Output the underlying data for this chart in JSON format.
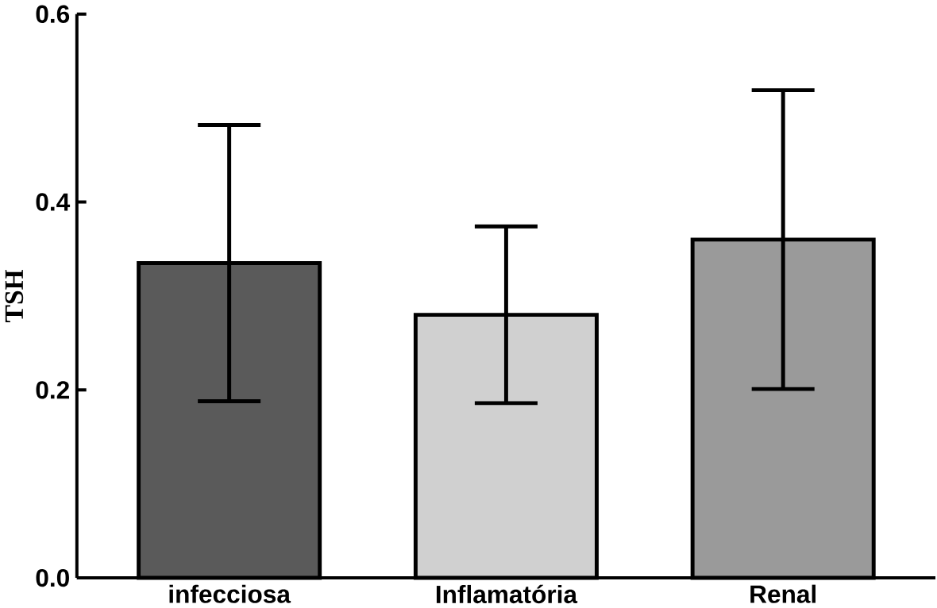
{
  "chart_data": {
    "type": "bar",
    "ylabel": "TSH",
    "categories": [
      "infecciosa",
      "Inflamatória",
      "Renal"
    ],
    "values": [
      0.335,
      0.28,
      0.36
    ],
    "errors": [
      0.147,
      0.094,
      0.159
    ],
    "colors": [
      "#5a5a5a",
      "#d0d0d0",
      "#9a9a9a"
    ],
    "ylim": [
      0,
      0.6
    ],
    "yticks": [
      {
        "value": 0,
        "label": "0.0"
      },
      {
        "value": 0.2,
        "label": "0.2"
      },
      {
        "value": 0.4,
        "label": "0.4"
      },
      {
        "value": 0.6,
        "label": "0.6"
      }
    ]
  }
}
